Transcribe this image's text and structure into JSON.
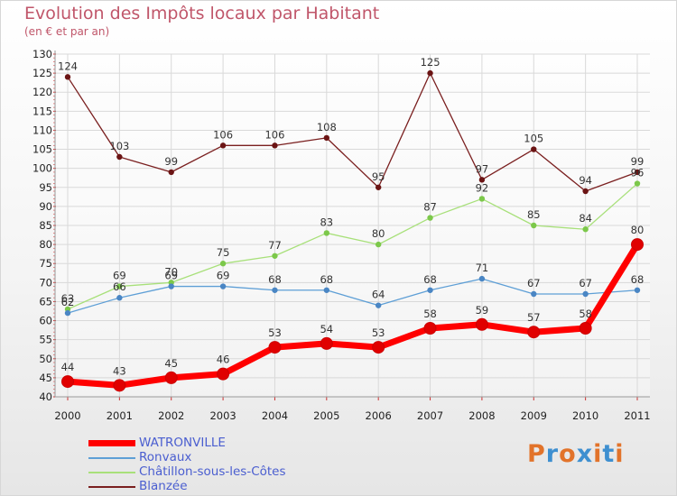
{
  "header": {
    "title": "Evolution des Impôts locaux par Habitant",
    "subtitle": "(en € et par an)"
  },
  "logo": {
    "text": "Proxiti",
    "colors": [
      "#e2732a",
      "#3e8fd0",
      "#e2732a",
      "#3e8fd0",
      "#e2732a",
      "#3e8fd0",
      "#e2732a"
    ]
  },
  "chart_data": {
    "type": "line",
    "title": "Evolution des Impôts locaux par Habitant",
    "subtitle": "(en € et par an)",
    "xlabel": "",
    "ylabel": "",
    "x": [
      "2000",
      "2001",
      "2002",
      "2003",
      "2004",
      "2005",
      "2006",
      "2007",
      "2008",
      "2009",
      "2010",
      "2011"
    ],
    "ylim": [
      40,
      130
    ],
    "yticks": [
      40,
      45,
      50,
      55,
      60,
      65,
      70,
      75,
      80,
      85,
      90,
      95,
      100,
      105,
      110,
      115,
      120,
      125,
      130
    ],
    "grid": true,
    "legend_position": "bottom-left",
    "series": [
      {
        "name": "Blanzée",
        "color": "#7a1f1f",
        "marker": "#6b1414",
        "values": [
          124,
          103,
          99,
          106,
          106,
          108,
          95,
          125,
          97,
          105,
          94,
          99
        ],
        "labels": [
          "124",
          "103",
          "99",
          "106",
          "106",
          "108",
          "95",
          "125",
          "97",
          "105",
          "94",
          "99"
        ]
      },
      {
        "name": "Châtillon-sous-les-Côtes",
        "color": "#a8e07a",
        "marker": "#7cc84a",
        "values": [
          63,
          69,
          70,
          75,
          77,
          83,
          80,
          87,
          92,
          85,
          84,
          96
        ],
        "labels": [
          "63",
          "69",
          "70",
          "75",
          "77",
          "83",
          "80",
          "87",
          "92",
          "85",
          "84",
          "96"
        ]
      },
      {
        "name": "Ronvaux",
        "color": "#5e9fd6",
        "marker": "#4a86c4",
        "values": [
          62,
          66,
          69,
          69,
          68,
          68,
          64,
          68,
          71,
          67,
          67,
          68
        ],
        "labels": [
          "62",
          "66",
          "69",
          "69",
          "68",
          "68",
          "64",
          "68",
          "71",
          "67",
          "67",
          "68"
        ]
      },
      {
        "name": "WATRONVILLE",
        "color": "#ff0000",
        "marker": "#e00000",
        "values": [
          44,
          43,
          45,
          46,
          53,
          54,
          53,
          58,
          59,
          57,
          58,
          80
        ],
        "labels": [
          "44",
          "43",
          "45",
          "46",
          "53",
          "54",
          "53",
          "58",
          "59",
          "57",
          "58",
          "80"
        ]
      }
    ],
    "legend": [
      "WATRONVILLE",
      "Ronvaux",
      "Châtillon-sous-les-Côtes",
      "Blanzée"
    ]
  }
}
